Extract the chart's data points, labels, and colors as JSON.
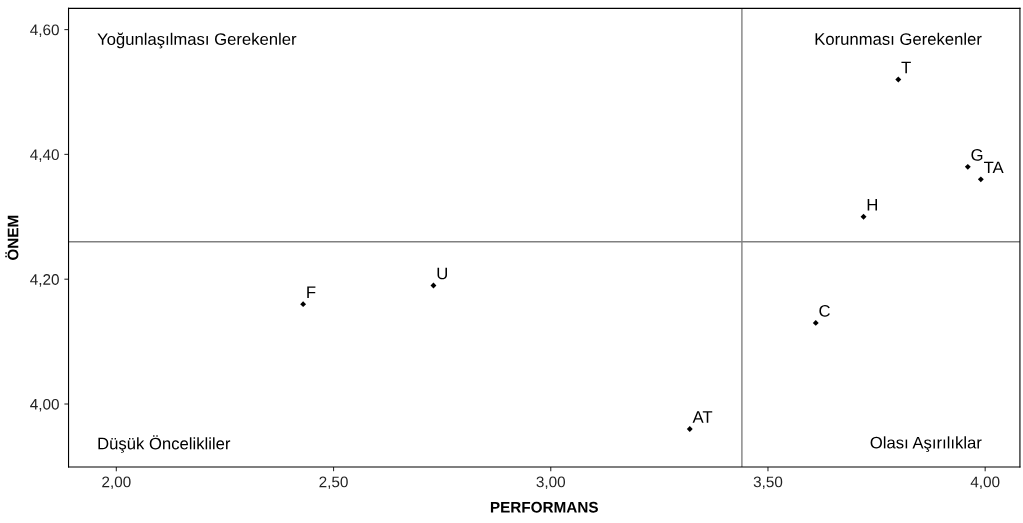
{
  "chart_data": {
    "type": "scatter",
    "xlabel": "PERFORMANS",
    "ylabel": "ÖNEM",
    "x": [
      3.8,
      3.96,
      3.99,
      3.72,
      2.73,
      2.43,
      3.61,
      3.32
    ],
    "series": [
      {
        "color": "#000000",
        "values": [
          4.52,
          4.38,
          4.36,
          4.3,
          4.19,
          4.16,
          4.13,
          3.96
        ]
      }
    ],
    "marker": "diamond",
    "grid": false,
    "xlim": [
      1.89,
      4.08
    ],
    "ylim": [
      3.899,
      4.634
    ],
    "xticks": [
      {
        "value": 2,
        "label": "2,00"
      },
      {
        "value": 2.5,
        "label": "2,50"
      },
      {
        "value": 3,
        "label": "3,00"
      },
      {
        "value": 3.5,
        "label": "3,50"
      },
      {
        "value": 4,
        "label": "4,00"
      }
    ],
    "yticks": [
      {
        "value": 4,
        "label": "4,00"
      },
      {
        "value": 4.2,
        "label": "4,20"
      },
      {
        "value": 4.4,
        "label": "4,40"
      },
      {
        "value": 4.6,
        "label": "4,60"
      }
    ],
    "ref_lines": [
      {
        "axis": "x",
        "value": 3.44,
        "color": "#808080"
      },
      {
        "axis": "y",
        "value": 4.26,
        "color": "#808080"
      }
    ],
    "annotations": [
      "Yoğunlaşılması Gerekenler",
      "Korunması Gerekenler",
      "Düşük Öncelikliler",
      "Olası Aşırılıklar",
      {
        "text": "T",
        "x": 3.8,
        "y": 4.52
      },
      {
        "text": "G",
        "x": 3.96,
        "y": 4.38
      },
      {
        "text": "TA",
        "x": 3.99,
        "y": 4.36
      },
      {
        "text": "H",
        "x": 3.72,
        "y": 4.3
      },
      {
        "text": "U",
        "x": 2.73,
        "y": 4.19
      },
      {
        "text": "F",
        "x": 2.43,
        "y": 4.16
      },
      {
        "text": "C",
        "x": 3.61,
        "y": 4.13
      },
      {
        "text": "AT",
        "x": 3.32,
        "y": 3.96
      }
    ]
  }
}
